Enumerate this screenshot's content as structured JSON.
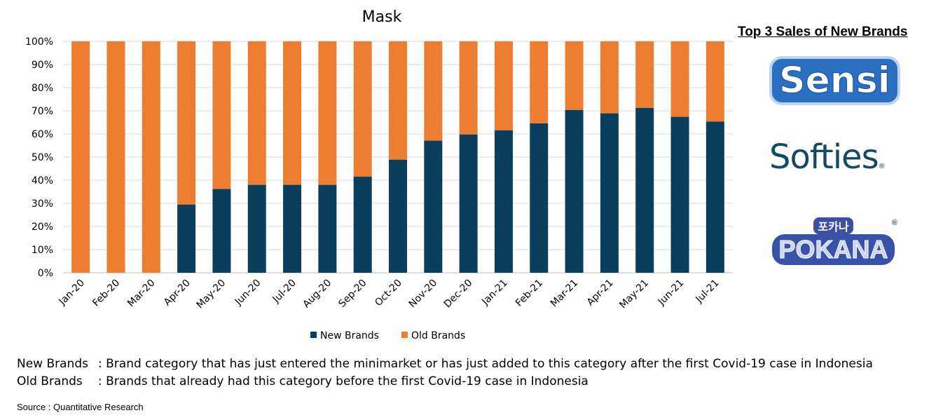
{
  "chart_data": {
    "type": "bar",
    "stacked": true,
    "title": "Mask",
    "categories": [
      "Jan-20",
      "Feb-20",
      "Mar-20",
      "Apr-20",
      "May-20",
      "Jun-20",
      "Jul-20",
      "Aug-20",
      "Sep-20",
      "Oct-20",
      "Nov-20",
      "Dec-20",
      "Jan-21",
      "Feb-21",
      "Mar-21",
      "Apr-21",
      "May-21",
      "Jun-21",
      "Jul-21"
    ],
    "series": [
      {
        "name": "New Brands",
        "color": "#0b3d5c",
        "values": [
          0,
          0,
          0,
          29.5,
          36.2,
          38,
          38,
          38,
          41.6,
          48.9,
          57.1,
          59.8,
          61.6,
          64.6,
          70.4,
          68.9,
          71.3,
          67.4,
          65.3
        ]
      },
      {
        "name": "Old Brands",
        "color": "#ed7d31",
        "values": [
          100,
          100,
          100,
          70.5,
          63.8,
          62,
          62,
          62,
          58.4,
          51.1,
          42.9,
          40.2,
          38.4,
          35.4,
          29.6,
          31.1,
          28.7,
          32.6,
          34.7
        ]
      }
    ],
    "ylim": [
      0,
      100
    ],
    "yticks": [
      "0%",
      "10%",
      "20%",
      "30%",
      "40%",
      "50%",
      "60%",
      "70%",
      "80%",
      "90%",
      "100%"
    ],
    "grid": true,
    "legend": "bottom"
  },
  "side": {
    "title": "Top 3 Sales of New Brands",
    "logos": [
      {
        "name": "Sensi"
      },
      {
        "name": "Softies",
        "mark": "®"
      },
      {
        "name": "POKANA",
        "korean": "포카나",
        "mark": "®"
      }
    ]
  },
  "notes": [
    {
      "label": "New Brands",
      "text": ": Brand category that has just entered the minimarket or has just added to this category after the first Covid-19 case in Indonesia"
    },
    {
      "label": "Old Brands",
      "text": ": Brands that already had this category before the first Covid-19 case in Indonesia"
    }
  ],
  "source": "Source : Quantitative Research"
}
